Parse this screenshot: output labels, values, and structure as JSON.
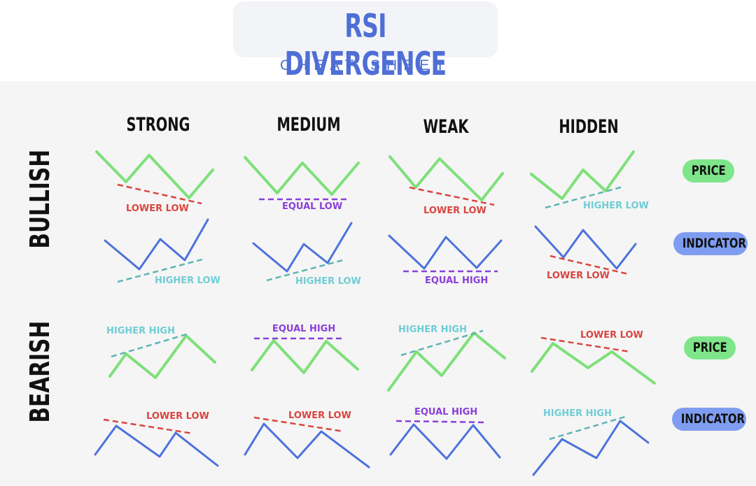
{
  "header": {
    "title": "RSI DIVERGENCE",
    "subtitle": "CHEAT SHEET"
  },
  "columns": [
    "STRONG",
    "MEDIUM",
    "WEAK",
    "HIDDEN"
  ],
  "rows": [
    "BULLISH",
    "BEARISH"
  ],
  "pills": {
    "price": "PRICE",
    "indicator": "INDICATOR"
  },
  "colors": {
    "price_line": "#7ee07a",
    "indicator_line": "#4d72dc",
    "lower": "#d9453f",
    "equal": "#8a3fd8",
    "higher": "#6fcdd6",
    "title": "#4f6fd6",
    "price_pill": "#7fe58a",
    "indicator_pill": "#7f9df0"
  },
  "labels": {
    "bull_price": [
      "LOWER LOW",
      "EQUAL LOW",
      "LOWER LOW",
      "HIGHER LOW"
    ],
    "bull_ind": [
      "HIGHER LOW",
      "HIGHER LOW",
      "EQUAL HIGH",
      "LOWER LOW"
    ],
    "bear_price": [
      "HIGHER HIGH",
      "EQUAL HIGH",
      "HIGHER HIGH",
      "LOWER LOW"
    ],
    "bear_ind": [
      "LOWER LOW",
      "LOWER LOW",
      "EQUAL HIGH",
      "HIGHER HIGH"
    ]
  }
}
